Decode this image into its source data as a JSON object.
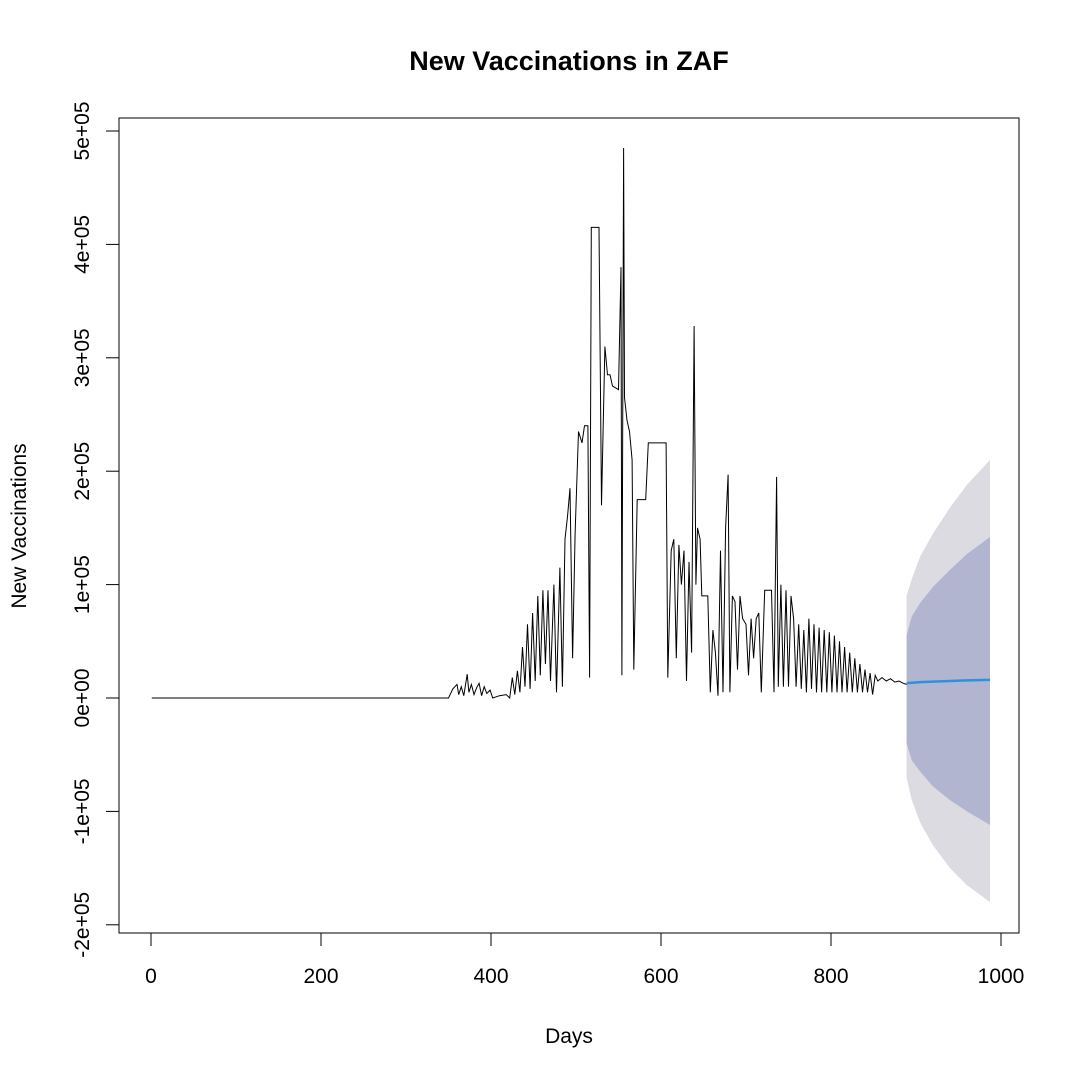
{
  "chart_data": {
    "type": "line",
    "title": "New Vaccinations in ZAF",
    "xlabel": "Days",
    "ylabel": "New Vaccinations",
    "xlim": [
      0,
      1000
    ],
    "ylim": [
      -200000,
      500000
    ],
    "x_ticks": [
      0,
      200,
      400,
      600,
      800,
      1000
    ],
    "x_tick_labels": [
      "0",
      "200",
      "400",
      "600",
      "800",
      "1000"
    ],
    "y_ticks": [
      -200000,
      -100000,
      0,
      100000,
      200000,
      300000,
      400000,
      500000
    ],
    "y_tick_labels": [
      "-2e+05",
      "-1e+05",
      "0e+00",
      "1e+05",
      "2e+05",
      "3e+05",
      "4e+05",
      "5e+05"
    ],
    "grid": false,
    "legend": "none",
    "colors": {
      "series": "#000000",
      "forecast_mean": "#2f8fe0",
      "band_80": "#b1b5d0",
      "band_95": "#dbdbe1"
    },
    "series": [
      {
        "values": [
          [
            1,
            0
          ],
          [
            350,
            0
          ],
          [
            355,
            8000
          ],
          [
            360,
            12000
          ],
          [
            362,
            3000
          ],
          [
            365,
            10000
          ],
          [
            368,
            2000
          ],
          [
            372,
            21000
          ],
          [
            374,
            5000
          ],
          [
            377,
            12000
          ],
          [
            380,
            3000
          ],
          [
            383,
            9000
          ],
          [
            386,
            13000
          ],
          [
            389,
            2000
          ],
          [
            392,
            10000
          ],
          [
            395,
            4000
          ],
          [
            399,
            7000
          ],
          [
            402,
            0
          ],
          [
            410,
            2000
          ],
          [
            418,
            3000
          ],
          [
            422,
            0
          ],
          [
            425,
            18000
          ],
          [
            428,
            3000
          ],
          [
            431,
            24000
          ],
          [
            434,
            5000
          ],
          [
            437,
            45000
          ],
          [
            440,
            10000
          ],
          [
            443,
            65000
          ],
          [
            446,
            8000
          ],
          [
            449,
            75000
          ],
          [
            452,
            15000
          ],
          [
            455,
            90000
          ],
          [
            458,
            20000
          ],
          [
            461,
            95000
          ],
          [
            464,
            30000
          ],
          [
            467,
            95000
          ],
          [
            470,
            15000
          ],
          [
            474,
            100000
          ],
          [
            477,
            5000
          ],
          [
            481,
            115000
          ],
          [
            484,
            10000
          ],
          [
            487,
            140000
          ],
          [
            490,
            160000
          ],
          [
            493,
            185000
          ],
          [
            496,
            35000
          ],
          [
            499,
            145000
          ],
          [
            503,
            235000
          ],
          [
            507,
            225000
          ],
          [
            510,
            240000
          ],
          [
            514,
            240000
          ],
          [
            516,
            18000
          ],
          [
            518,
            415000
          ],
          [
            527,
            415000
          ],
          [
            530,
            170000
          ],
          [
            534,
            310000
          ],
          [
            537,
            285000
          ],
          [
            540,
            285000
          ],
          [
            543,
            275000
          ],
          [
            550,
            272000
          ],
          [
            553,
            380000
          ],
          [
            554,
            20000
          ],
          [
            556,
            485000
          ],
          [
            557,
            265000
          ],
          [
            560,
            245000
          ],
          [
            563,
            235000
          ],
          [
            566,
            210000
          ],
          [
            568,
            25000
          ],
          [
            572,
            175000
          ],
          [
            582,
            175000
          ],
          [
            585,
            225000
          ],
          [
            606,
            225000
          ],
          [
            608,
            18000
          ],
          [
            612,
            130000
          ],
          [
            615,
            140000
          ],
          [
            618,
            35000
          ],
          [
            621,
            135000
          ],
          [
            624,
            100000
          ],
          [
            627,
            130000
          ],
          [
            630,
            15000
          ],
          [
            633,
            120000
          ],
          [
            636,
            40000
          ],
          [
            639,
            328000
          ],
          [
            641,
            100000
          ],
          [
            643,
            150000
          ],
          [
            646,
            140000
          ],
          [
            648,
            90000
          ],
          [
            655,
            90000
          ],
          [
            658,
            5000
          ],
          [
            661,
            60000
          ],
          [
            664,
            40000
          ],
          [
            667,
            2000
          ],
          [
            670,
            130000
          ],
          [
            673,
            5000
          ],
          [
            676,
            150000
          ],
          [
            679,
            197000
          ],
          [
            681,
            5000
          ],
          [
            684,
            90000
          ],
          [
            687,
            85000
          ],
          [
            690,
            25000
          ],
          [
            693,
            90000
          ],
          [
            696,
            70000
          ],
          [
            700,
            65000
          ],
          [
            703,
            20000
          ],
          [
            706,
            70000
          ],
          [
            709,
            35000
          ],
          [
            712,
            70000
          ],
          [
            715,
            75000
          ],
          [
            718,
            5000
          ],
          [
            722,
            95000
          ],
          [
            730,
            95000
          ],
          [
            733,
            5000
          ],
          [
            736,
            195000
          ],
          [
            738,
            10000
          ],
          [
            741,
            100000
          ],
          [
            744,
            10000
          ],
          [
            747,
            95000
          ],
          [
            750,
            10000
          ],
          [
            753,
            90000
          ],
          [
            756,
            70000
          ],
          [
            759,
            10000
          ],
          [
            762,
            65000
          ],
          [
            765,
            8000
          ],
          [
            768,
            60000
          ],
          [
            771,
            5000
          ],
          [
            774,
            70000
          ],
          [
            777,
            8000
          ],
          [
            780,
            65000
          ],
          [
            783,
            5000
          ],
          [
            786,
            62000
          ],
          [
            789,
            5000
          ],
          [
            792,
            60000
          ],
          [
            795,
            5000
          ],
          [
            798,
            58000
          ],
          [
            801,
            5000
          ],
          [
            804,
            55000
          ],
          [
            807,
            5000
          ],
          [
            810,
            50000
          ],
          [
            813,
            5000
          ],
          [
            816,
            45000
          ],
          [
            819,
            5000
          ],
          [
            822,
            40000
          ],
          [
            825,
            5000
          ],
          [
            828,
            35000
          ],
          [
            831,
            5000
          ],
          [
            834,
            30000
          ],
          [
            837,
            5000
          ],
          [
            840,
            25000
          ],
          [
            843,
            5000
          ],
          [
            846,
            22000
          ],
          [
            849,
            3000
          ],
          [
            852,
            20000
          ],
          [
            855,
            15000
          ],
          [
            860,
            18000
          ],
          [
            865,
            15000
          ],
          [
            870,
            17000
          ],
          [
            875,
            14000
          ],
          [
            880,
            15000
          ],
          [
            885,
            13000
          ],
          [
            889,
            12000
          ]
        ]
      }
    ],
    "forecast": {
      "x": [
        889,
        895,
        905,
        920,
        940,
        960,
        987
      ],
      "mean": [
        13000,
        13500,
        14000,
        14500,
        15000,
        15500,
        16000
      ],
      "lower_80": [
        -40000,
        -55000,
        -65000,
        -78000,
        -90000,
        -100000,
        -112000
      ],
      "upper_80": [
        55000,
        72000,
        84000,
        98000,
        113000,
        127000,
        142000
      ],
      "lower_95": [
        -70000,
        -90000,
        -110000,
        -130000,
        -150000,
        -165000,
        -180000
      ],
      "upper_95": [
        90000,
        105000,
        125000,
        145000,
        168000,
        188000,
        210000
      ]
    }
  }
}
